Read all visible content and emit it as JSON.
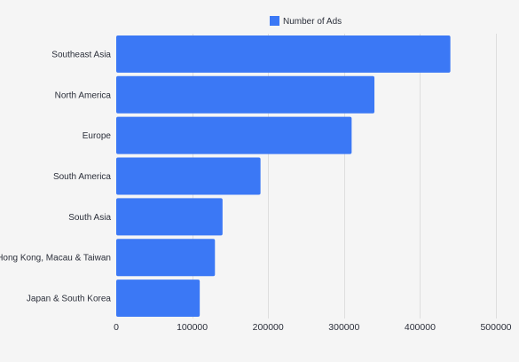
{
  "chart_data": {
    "type": "bar",
    "orientation": "horizontal",
    "categories": [
      "Southeast Asia",
      "North America",
      "Europe",
      "South America",
      "South Asia",
      "Hong Kong, Macau & Taiwan",
      "Japan & South Korea"
    ],
    "series": [
      {
        "name": "Number of Ads",
        "values": [
          440000,
          340000,
          310000,
          190000,
          140000,
          130000,
          110000
        ]
      }
    ],
    "xlim": [
      0,
      500000
    ],
    "xticks": [
      0,
      100000,
      200000,
      300000,
      400000,
      500000
    ],
    "xtick_labels": [
      "0",
      "100000",
      "200000",
      "300000",
      "400000",
      "500000"
    ],
    "grid": "vertical",
    "legend_position": "top",
    "colors": {
      "bar": "#3b78f5",
      "grid": "#dedede",
      "background": "#f5f5f5"
    }
  }
}
